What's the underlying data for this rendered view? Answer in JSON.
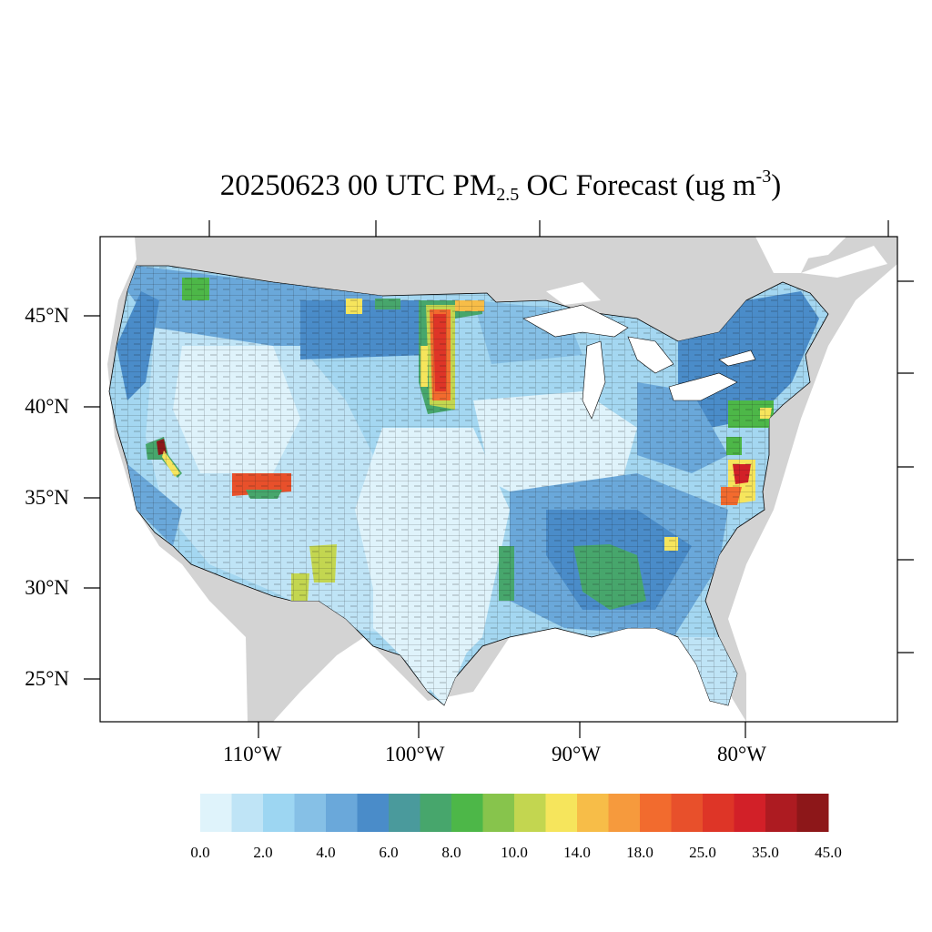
{
  "title": {
    "prefix": "20250623 00 UTC PM",
    "subscript": "2.5",
    "middle": " OC Forecast (ug m",
    "superscript": "-3",
    "suffix": ")"
  },
  "map": {
    "projection": "lambert-conformal",
    "region": "contiguous-united-states",
    "field": "PM2.5 organic carbon",
    "shading": "county-level",
    "ocean_color": "#ffffff",
    "land_outside_domain_color": "#d3d3d3",
    "lat_labels": [
      "45°N",
      "40°N",
      "35°N",
      "30°N",
      "25°N"
    ],
    "lon_labels": [
      "110°W",
      "100°W",
      "90°W",
      "80°W"
    ],
    "hotspots": [
      {
        "area": "central Dakotas / Nebraska strip",
        "level": "25-45"
      },
      {
        "area": "western Nevada / California border",
        "level": "35-45"
      },
      {
        "area": "northern Arizona / New Mexico",
        "level": "18-25"
      },
      {
        "area": "Virginia / Maryland",
        "level": "18-35"
      },
      {
        "area": "New Jersey / Pennsylvania",
        "level": "8-14"
      },
      {
        "area": "Alabama / Mississippi",
        "level": "8-10"
      }
    ]
  },
  "colorbar": {
    "colors": [
      "#dff3fb",
      "#bfe4f6",
      "#9dd6f2",
      "#86c0e6",
      "#6aa8da",
      "#4a8cc9",
      "#4a9a9c",
      "#47a66c",
      "#4db748",
      "#87c44c",
      "#c3d650",
      "#f6e55c",
      "#f7bd48",
      "#f69a3d",
      "#f26b2e",
      "#e8502b",
      "#de3527",
      "#d22028",
      "#ad1b21",
      "#8d1719"
    ],
    "labels": [
      "0.0",
      "2.0",
      "4.0",
      "6.0",
      "8.0",
      "10.0",
      "14.0",
      "18.0",
      "25.0",
      "35.0",
      "45.0"
    ]
  }
}
